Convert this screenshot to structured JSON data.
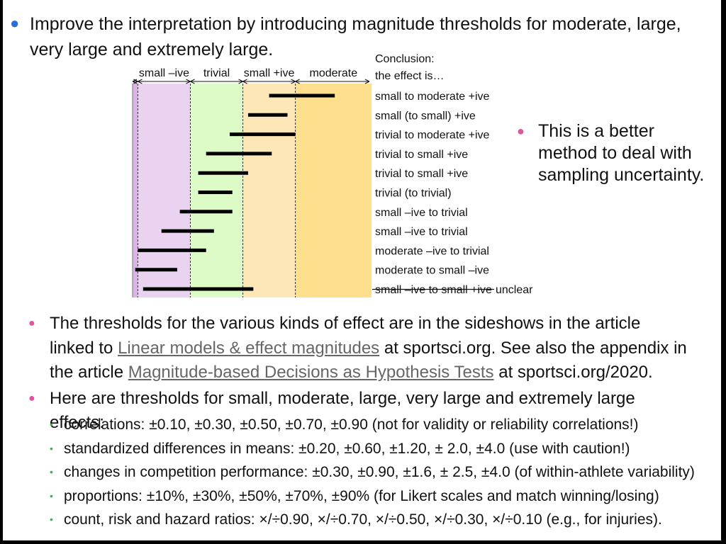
{
  "bullets": {
    "intro": "Improve the interpretation by introducing magnitude thresholds for moderate, large, very large and extremely large.",
    "better": "This is a better method to deal with sampling uncertainty.",
    "thresholds_p1": "The thresholds for the various kinds of effect are in the sideshows in the article linked to",
    "link1": "Linear models & effect magnitudes",
    "thresholds_p2": "at sportsci.org. See also the appendix in the article",
    "link2": "Magnitude-based Decisions as Hypothesis Tests",
    "thresholds_p3": "at sportsci.org/2020.",
    "here": "Here are thresholds for small, moderate, large, very large and extremely large effects:",
    "sub": [
      "correlations: ±0.10, ±0.30, ±0.50, ±0.70, ±0.90 (not for validity or reliability correlations!)",
      "standardized differences in means: ±0.20, ±0.60, ±1.20, ± 2.0, ±4.0 (use with caution!)",
      "changes in competition performance: ±0.30, ±0.90, ±1.6, ± 2.5, ±4.0 (of within-athlete variability)",
      "proportions: ±10%, ±30%, ±50%, ±70%, ±90% (for Likert scales and match winning/losing)",
      "count, risk and hazard ratios: ×/÷0.90, ×/÷0.70, ×/÷0.50, ×/÷0.30, ×/÷0.10 (e.g., for injuries)."
    ]
  },
  "colors": {
    "moderate_neg": "#dcb4e8",
    "small_neg": "#ead3f1",
    "trivial": "#ddfbc6",
    "small_pos": "#fde7b6",
    "moderate_pos": "#fddf8d"
  },
  "chart_data": {
    "type": "interval",
    "regions": [
      "small –ive",
      "trivial",
      "small +ive",
      "moderate"
    ],
    "conclusion_header": [
      "Conclusion:",
      "the effect is…"
    ],
    "thresholds": [
      -0.3,
      -0.1,
      0.1,
      0.3
    ],
    "xlim": [
      -0.32,
      0.59
    ],
    "intervals": [
      {
        "lower": 0.2,
        "upper": 0.45,
        "label": "small to moderate +ive",
        "strike": false
      },
      {
        "lower": 0.12,
        "upper": 0.27,
        "label": "small (to small) +ive",
        "strike": false
      },
      {
        "lower": 0.05,
        "upper": 0.3,
        "label": "trivial to moderate +ive",
        "strike": false
      },
      {
        "lower": -0.04,
        "upper": 0.21,
        "label": "trivial to small +ive",
        "strike": false
      },
      {
        "lower": -0.07,
        "upper": 0.12,
        "label": "trivial to small +ive",
        "strike": false
      },
      {
        "lower": -0.07,
        "upper": 0.06,
        "label": "trivial (to trivial)",
        "strike": false
      },
      {
        "lower": -0.14,
        "upper": 0.06,
        "label": "small –ive to trivial",
        "strike": false
      },
      {
        "lower": -0.21,
        "upper": -0.01,
        "label": "small –ive to trivial",
        "strike": false
      },
      {
        "lower": -0.3,
        "upper": -0.04,
        "label": "moderate –ive to trivial",
        "strike": false
      },
      {
        "lower": -0.31,
        "upper": -0.15,
        "label": "moderate to small –ive",
        "strike": false
      },
      {
        "lower": -0.28,
        "upper": 0.14,
        "label": "small –ive to small +ive",
        "strike": true,
        "suffix": "unclear"
      }
    ]
  }
}
